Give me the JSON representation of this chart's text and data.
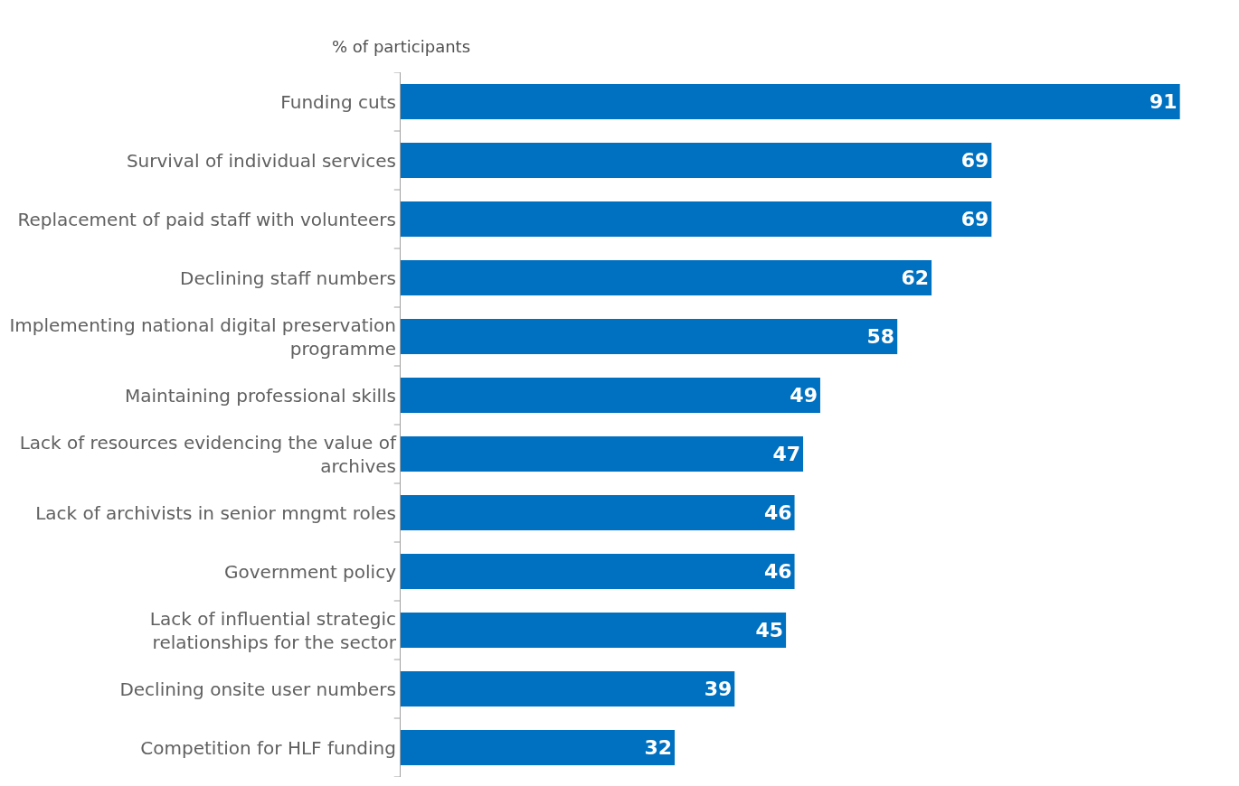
{
  "chart_data": {
    "type": "bar",
    "orientation": "horizontal",
    "subtitle": "% of participants",
    "categories": [
      "Funding cuts",
      "Survival of individual services",
      "Replacement of paid staff with volunteers",
      "Declining staff numbers",
      "Implementing national digital preservation programme",
      "Maintaining professional skills",
      "Lack of resources evidencing the value of archives",
      "Lack of archivists in senior mngmt roles",
      "Government policy",
      "Lack of influential strategic relationships for the sector",
      "Declining onsite user numbers",
      "Competition for HLF funding"
    ],
    "values": [
      91,
      69,
      69,
      62,
      58,
      49,
      47,
      46,
      46,
      45,
      39,
      32
    ],
    "color": "#0070c0",
    "data_labels": true
  }
}
